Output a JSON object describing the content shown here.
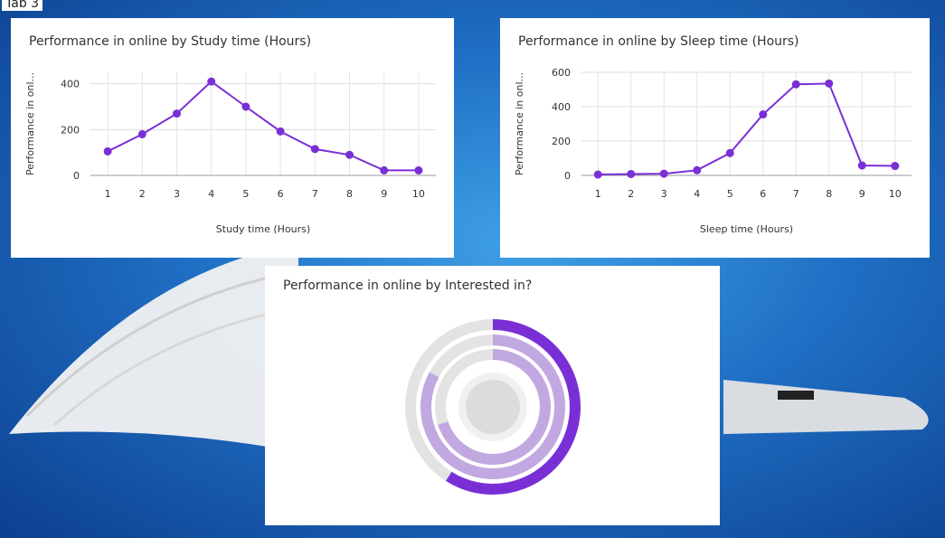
{
  "tab_label": "Tab 3",
  "chart_data": [
    {
      "type": "line",
      "title": "Performance in online by Study time (Hours)",
      "y_label": "Performance in onl...",
      "x_label": "Study time (Hours)",
      "x": [
        1,
        2,
        3,
        4,
        5,
        6,
        7,
        8,
        9,
        10
      ],
      "values": [
        105,
        180,
        270,
        410,
        300,
        192,
        115,
        90,
        22,
        22
      ],
      "color": "#7a2fd6",
      "xlim": [
        0.5,
        10.5
      ],
      "xticks": [
        1,
        2,
        3,
        4,
        5,
        6,
        7,
        8,
        9,
        10
      ],
      "ylim": [
        0,
        450
      ],
      "yticks": [
        0,
        200,
        400
      ],
      "grid": true
    },
    {
      "type": "line",
      "title": "Performance in online by Sleep time (Hours)",
      "y_label": "Performance in onl...",
      "x_label": "Sleep time (Hours)",
      "x": [
        1,
        2,
        3,
        4,
        5,
        6,
        7,
        8,
        9,
        10
      ],
      "values": [
        5,
        8,
        10,
        30,
        130,
        355,
        530,
        535,
        58,
        55
      ],
      "color": "#7a2fd6",
      "xlim": [
        0.5,
        10.5
      ],
      "xticks": [
        1,
        2,
        3,
        4,
        5,
        6,
        7,
        8,
        9,
        10
      ],
      "ylim": [
        0,
        600
      ],
      "yticks": [
        0,
        200,
        400,
        600
      ],
      "grid": true
    },
    {
      "type": "radial",
      "title": "Performance in online by Interested in?",
      "values": [
        59,
        83,
        70
      ],
      "colors": [
        "#7a2fd6",
        "#c2a8e0",
        "#c2a8e0"
      ],
      "ylim": [
        0,
        100
      ]
    }
  ]
}
